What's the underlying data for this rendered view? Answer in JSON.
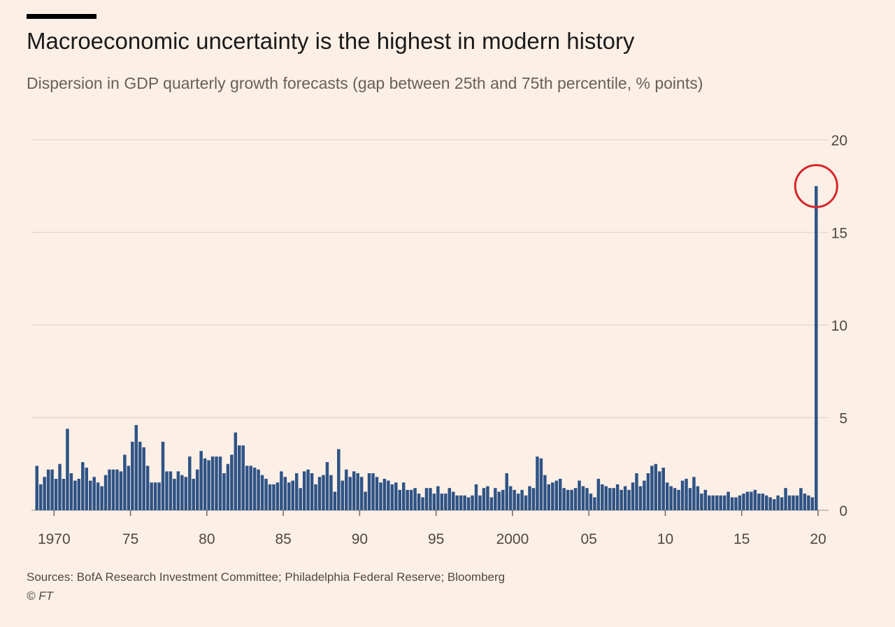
{
  "title": "Macroeconomic uncertainty is the highest in modern history",
  "subtitle": "Dispersion in GDP quarterly growth forecasts (gap between 25th and 75th percentile, % points)",
  "sources": "Sources: BofA Research Investment Committee; Philadelphia Federal Reserve; Bloomberg",
  "copyright": "© FT",
  "colors": {
    "background": "#fcefe6",
    "bar": "#2e5385",
    "grid": "#e6d8cf",
    "axis": "#4d4845",
    "highlight_circle": "#d7262b"
  },
  "chart_data": {
    "type": "bar",
    "x_start": 1968.75,
    "x_step": 0.25,
    "ylim": [
      0,
      20
    ],
    "yticks": [
      0,
      5,
      10,
      15,
      20
    ],
    "ytick_labels": [
      "0",
      "5",
      "10",
      "15",
      "20"
    ],
    "xticks": [
      1970,
      1975,
      1980,
      1985,
      1990,
      1995,
      2000,
      2005,
      2010,
      2015,
      2020
    ],
    "xtick_labels": [
      "1970",
      "75",
      "80",
      "85",
      "90",
      "95",
      "2000",
      "05",
      "10",
      "15",
      "20"
    ],
    "y_axis_position": "right",
    "grid": true,
    "highlight": "last bar (2020) circled",
    "values": [
      2.4,
      1.4,
      1.8,
      2.2,
      2.2,
      1.7,
      2.5,
      1.7,
      4.4,
      2.0,
      1.6,
      1.7,
      2.6,
      2.3,
      1.6,
      1.8,
      1.5,
      1.3,
      1.9,
      2.2,
      2.2,
      2.2,
      2.1,
      3.0,
      2.4,
      3.7,
      4.6,
      3.7,
      3.4,
      2.4,
      1.5,
      1.5,
      1.5,
      3.7,
      2.1,
      2.1,
      1.7,
      2.1,
      1.9,
      1.8,
      2.9,
      1.7,
      2.2,
      3.2,
      2.8,
      2.7,
      2.9,
      2.9,
      2.9,
      2.0,
      2.5,
      3.0,
      4.2,
      3.5,
      3.5,
      2.4,
      2.4,
      2.3,
      2.2,
      1.9,
      1.7,
      1.4,
      1.4,
      1.5,
      2.1,
      1.8,
      1.5,
      1.6,
      2.0,
      1.2,
      2.1,
      2.2,
      2.0,
      1.4,
      1.8,
      1.9,
      2.6,
      1.9,
      1.0,
      3.3,
      1.6,
      2.2,
      1.8,
      2.1,
      2.0,
      1.8,
      1.0,
      2.0,
      2.0,
      1.8,
      1.5,
      1.7,
      1.6,
      1.4,
      1.5,
      1.1,
      1.5,
      1.1,
      1.1,
      1.2,
      0.9,
      0.7,
      1.2,
      1.2,
      0.9,
      1.3,
      0.9,
      0.9,
      1.2,
      1.0,
      0.8,
      0.8,
      0.8,
      0.7,
      0.8,
      1.4,
      0.8,
      1.2,
      1.3,
      0.7,
      1.2,
      1.0,
      1.1,
      2.0,
      1.3,
      1.1,
      0.9,
      1.1,
      0.8,
      1.3,
      1.2,
      2.9,
      2.8,
      1.9,
      1.4,
      1.5,
      1.6,
      1.7,
      1.2,
      1.1,
      1.1,
      1.2,
      1.6,
      1.3,
      1.2,
      0.9,
      0.7,
      1.7,
      1.4,
      1.3,
      1.2,
      1.2,
      1.4,
      1.1,
      1.3,
      1.1,
      1.5,
      2.0,
      1.3,
      1.6,
      2.0,
      2.4,
      2.5,
      2.1,
      2.3,
      1.5,
      1.3,
      1.2,
      1.1,
      1.6,
      1.7,
      1.2,
      1.8,
      1.3,
      0.9,
      1.1,
      0.8,
      0.8,
      0.8,
      0.8,
      0.8,
      1.0,
      0.7,
      0.7,
      0.8,
      0.9,
      1.0,
      1.0,
      1.1,
      0.9,
      0.9,
      0.8,
      0.7,
      0.6,
      0.8,
      0.7,
      1.2,
      0.8,
      0.8,
      0.8,
      1.2,
      0.9,
      0.8,
      0.7,
      17.5
    ]
  }
}
